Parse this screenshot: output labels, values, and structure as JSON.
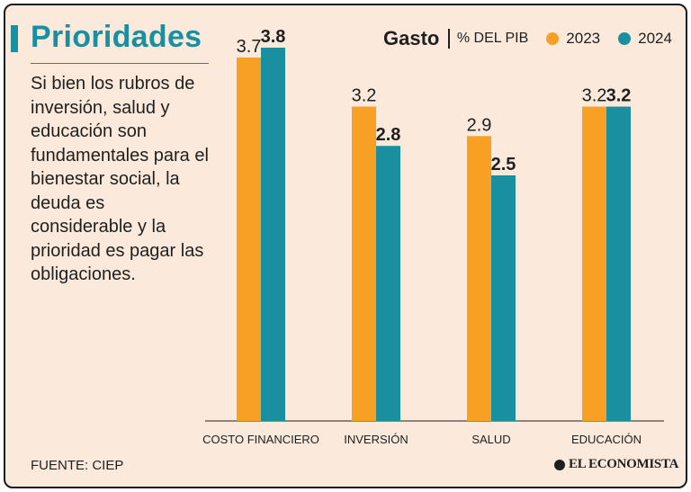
{
  "title": "Prioridades",
  "description": "Si bien los rubros de inversión, salud y educación son fundamentales para el bienestar social, la deuda es considerable y la prioridad es pagar las obligaciones.",
  "source": "FUENTE: CIEP",
  "brand": "EL ECONOMISTA",
  "colors": {
    "background": "#fbe9dc",
    "accent": "#1a8fa0",
    "series_2023": "#f7a024",
    "series_2024": "#1a8fa0"
  },
  "chart_data": {
    "type": "bar",
    "title": "Gasto",
    "unit": "% DEL PIB",
    "categories": [
      "COSTO FINANCIERO",
      "INVERSIÓN",
      "SALUD",
      "EDUCACIÓN"
    ],
    "series": [
      {
        "name": "2023",
        "values": [
          3.7,
          3.2,
          2.9,
          3.2
        ],
        "value_labels": [
          "3.7",
          "3.2",
          "2.9",
          "3.2"
        ]
      },
      {
        "name": "2024",
        "values": [
          3.8,
          2.8,
          2.5,
          3.2
        ],
        "value_labels": [
          "3.8",
          "2.8",
          "2.5",
          "3.2"
        ]
      }
    ],
    "ylim": [
      0,
      3.8
    ],
    "legend": "top-right",
    "grid": false
  }
}
